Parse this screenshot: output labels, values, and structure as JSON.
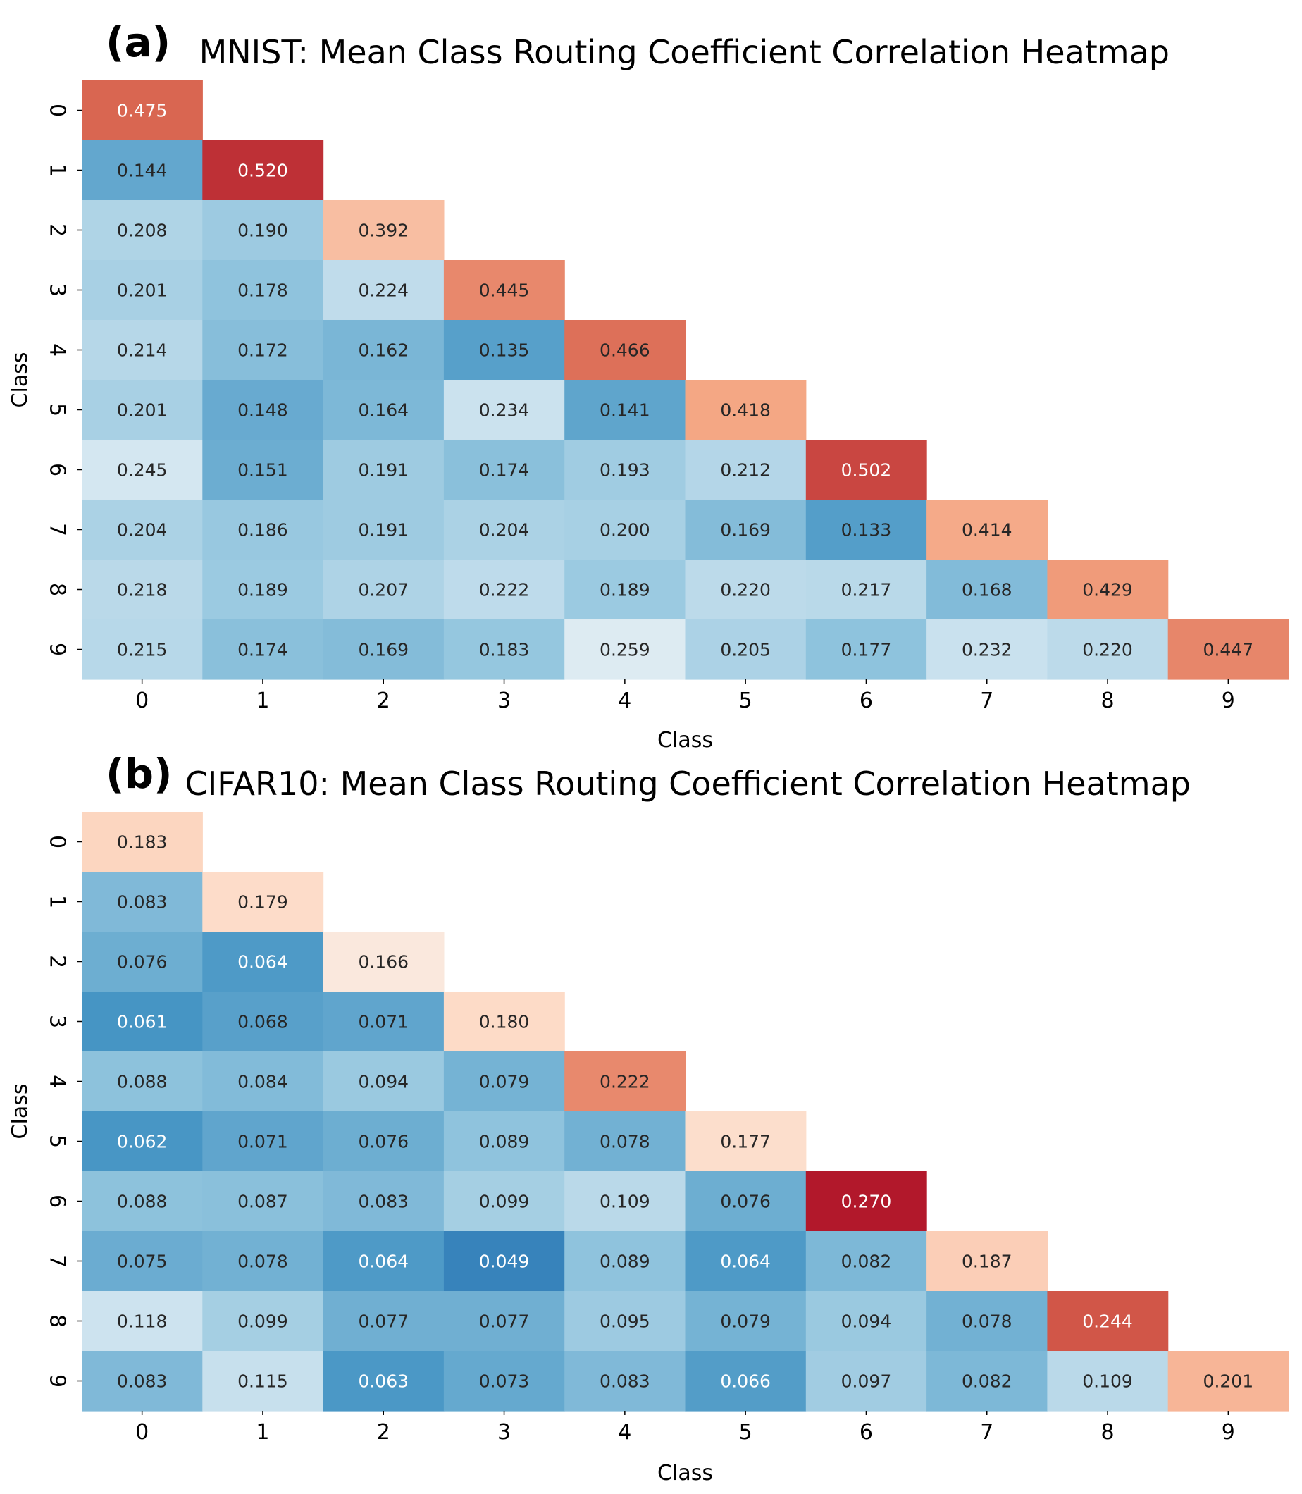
{
  "chart_data": [
    {
      "type": "heatmap",
      "panel_label": "(a)",
      "title": "MNIST: Mean Class Routing Coefficient Correlation Heatmap",
      "xlabel": "Class",
      "ylabel": "Class",
      "x_ticks": [
        "0",
        "1",
        "2",
        "3",
        "4",
        "5",
        "6",
        "7",
        "8",
        "9"
      ],
      "y_ticks": [
        "0",
        "1",
        "2",
        "3",
        "4",
        "5",
        "6",
        "7",
        "8",
        "9"
      ],
      "mask": "upper-triangle hidden",
      "colormap": "RdBu_r",
      "value_range": [
        0.0,
        0.6
      ],
      "values": [
        [
          "0.475"
        ],
        [
          "0.144",
          "0.520"
        ],
        [
          "0.208",
          "0.190",
          "0.392"
        ],
        [
          "0.201",
          "0.178",
          "0.224",
          "0.445"
        ],
        [
          "0.214",
          "0.172",
          "0.162",
          "0.135",
          "0.466"
        ],
        [
          "0.201",
          "0.148",
          "0.164",
          "0.234",
          "0.141",
          "0.418"
        ],
        [
          "0.245",
          "0.151",
          "0.191",
          "0.174",
          "0.193",
          "0.212",
          "0.502"
        ],
        [
          "0.204",
          "0.186",
          "0.191",
          "0.204",
          "0.200",
          "0.169",
          "0.133",
          "0.414"
        ],
        [
          "0.218",
          "0.189",
          "0.207",
          "0.222",
          "0.189",
          "0.220",
          "0.217",
          "0.168",
          "0.429"
        ],
        [
          "0.215",
          "0.174",
          "0.169",
          "0.183",
          "0.259",
          "0.205",
          "0.177",
          "0.232",
          "0.220",
          "0.447"
        ]
      ]
    },
    {
      "type": "heatmap",
      "panel_label": "(b)",
      "title": "CIFAR10: Mean Class Routing Coefficient Correlation Heatmap",
      "xlabel": "Class",
      "ylabel": "Class",
      "x_ticks": [
        "0",
        "1",
        "2",
        "3",
        "4",
        "5",
        "6",
        "7",
        "8",
        "9"
      ],
      "y_ticks": [
        "0",
        "1",
        "2",
        "3",
        "4",
        "5",
        "6",
        "7",
        "8",
        "9"
      ],
      "mask": "upper-triangle hidden",
      "colormap": "RdBu_r",
      "value_range": [
        0.0,
        0.3
      ],
      "values": [
        [
          "0.183"
        ],
        [
          "0.083",
          "0.179"
        ],
        [
          "0.076",
          "0.064",
          "0.166"
        ],
        [
          "0.061",
          "0.068",
          "0.071",
          "0.180"
        ],
        [
          "0.088",
          "0.084",
          "0.094",
          "0.079",
          "0.222"
        ],
        [
          "0.062",
          "0.071",
          "0.076",
          "0.089",
          "0.078",
          "0.177"
        ],
        [
          "0.088",
          "0.087",
          "0.083",
          "0.099",
          "0.109",
          "0.076",
          "0.270"
        ],
        [
          "0.075",
          "0.078",
          "0.064",
          "0.049",
          "0.089",
          "0.064",
          "0.082",
          "0.187"
        ],
        [
          "0.118",
          "0.099",
          "0.077",
          "0.077",
          "0.095",
          "0.079",
          "0.094",
          "0.078",
          "0.244"
        ],
        [
          "0.083",
          "0.115",
          "0.063",
          "0.073",
          "0.083",
          "0.066",
          "0.097",
          "0.082",
          "0.109",
          "0.201"
        ]
      ]
    }
  ]
}
